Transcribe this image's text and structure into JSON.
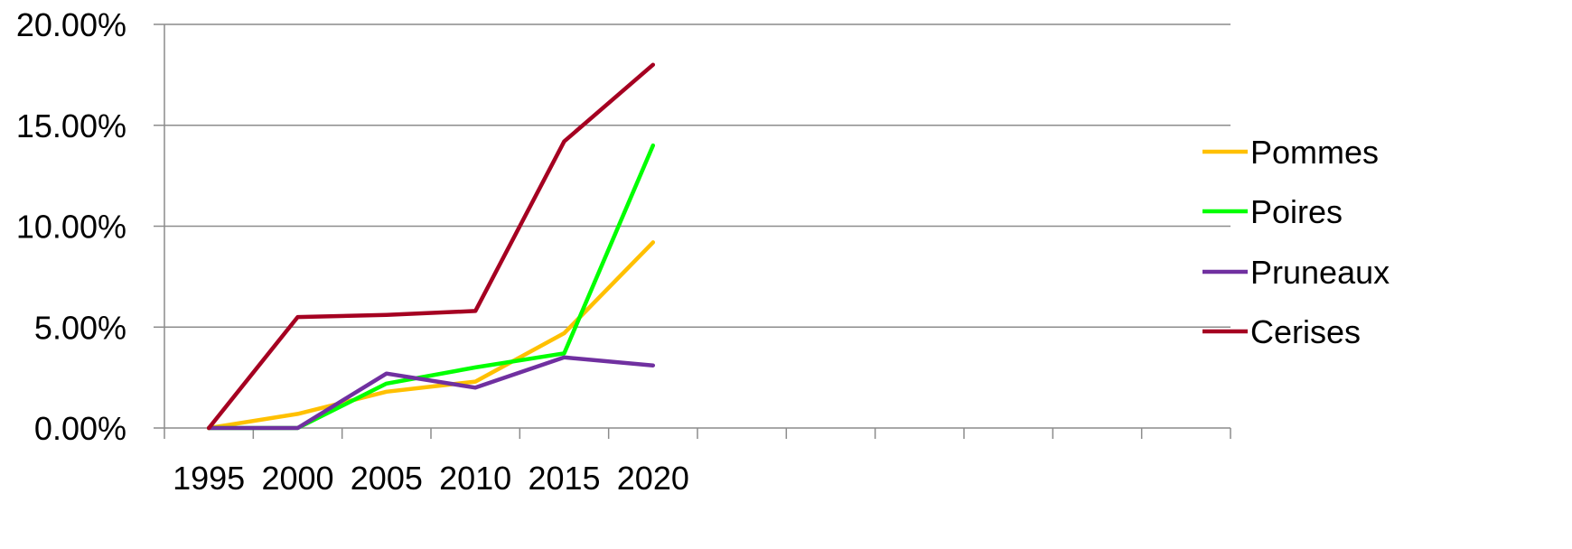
{
  "chart_data": {
    "type": "line",
    "title": "",
    "xlabel": "",
    "ylabel": "",
    "categories": [
      "1995",
      "2000",
      "2005",
      "2010",
      "2015",
      "2020"
    ],
    "total_slots": 12,
    "ylim": [
      0,
      20
    ],
    "yticks": [
      0,
      5,
      10,
      15,
      20
    ],
    "ytick_labels": [
      "0.00%",
      "5.00%",
      "10.00%",
      "15.00%",
      "20.00%"
    ],
    "grid": "horizontal",
    "legend_position": "right",
    "series": [
      {
        "name": "Pommes",
        "color": "#FFC000",
        "values": [
          0.0,
          0.7,
          1.8,
          2.3,
          4.7,
          9.2
        ]
      },
      {
        "name": "Poires",
        "color": "#00FF00",
        "values": [
          0.0,
          0.0,
          2.2,
          3.0,
          3.7,
          14.0
        ]
      },
      {
        "name": "Pruneaux",
        "color": "#7030A0",
        "values": [
          0.0,
          0.0,
          2.7,
          2.0,
          3.5,
          3.1
        ]
      },
      {
        "name": "Cerises",
        "color": "#A50021",
        "values": [
          0.0,
          5.5,
          5.6,
          5.8,
          14.2,
          18.0
        ]
      }
    ]
  }
}
